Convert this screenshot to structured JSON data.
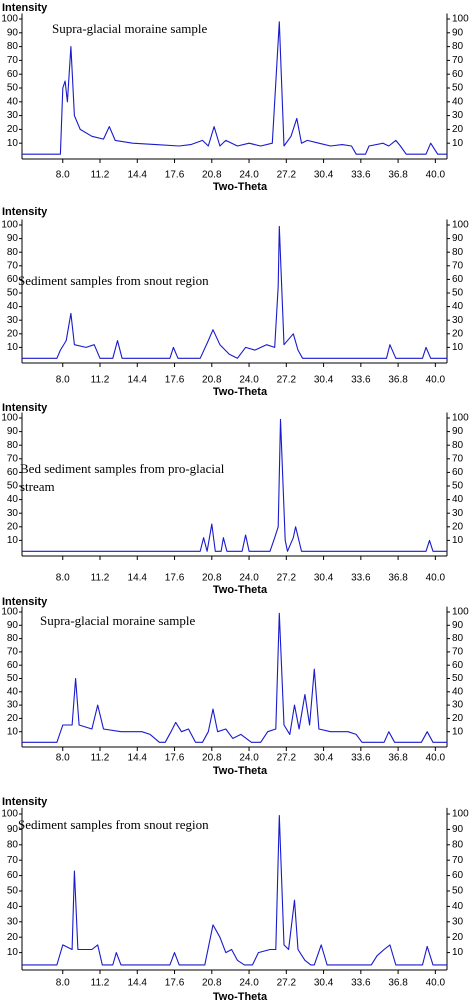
{
  "chart_data": [
    {
      "type": "line",
      "y_label": "Intensity",
      "x_label": "Two-Theta",
      "annotation": [
        "Supra-glacial moraine sample"
      ],
      "xlim": [
        4.5,
        41
      ],
      "ylim": [
        0,
        104
      ],
      "y2lim": [
        0,
        104
      ],
      "xticks": [
        {
          "value": 8,
          "label": "8.0"
        },
        11.2,
        14.4,
        17.6,
        20.8,
        {
          "value": 24,
          "label": "24.0"
        },
        27.2,
        30.4,
        33.6,
        36.8,
        {
          "value": 40,
          "label": "40.0"
        }
      ],
      "yticks": [
        10,
        20,
        30,
        40,
        50,
        60,
        70,
        80,
        90,
        100
      ],
      "y2ticks": [
        10,
        20,
        30,
        40,
        50,
        60,
        70,
        80,
        90,
        100
      ],
      "color": "#1a1acc",
      "x": [
        4.5,
        7.8,
        8.0,
        8.2,
        8.4,
        8.7,
        9.0,
        9.5,
        10.5,
        11.5,
        12.0,
        12.5,
        14.0,
        16.0,
        18.0,
        19.0,
        20.0,
        20.5,
        21.0,
        21.5,
        22.0,
        23.0,
        24.0,
        25.0,
        26.0,
        26.6,
        27.0,
        27.6,
        28.1,
        28.5,
        29.0,
        30.0,
        31.0,
        32.0,
        32.8,
        33.2,
        34.0,
        34.3,
        35.5,
        36.0,
        36.6,
        37.0,
        37.5,
        39.2,
        39.6,
        40.2,
        41.0
      ],
      "values": [
        2,
        2,
        50,
        55,
        40,
        80,
        30,
        20,
        15,
        13,
        22,
        12,
        10,
        9,
        8,
        9,
        12,
        8,
        22,
        8,
        12,
        8,
        10,
        8,
        10,
        98,
        8,
        15,
        28,
        10,
        12,
        10,
        8,
        9,
        8,
        2,
        2,
        8,
        10,
        8,
        12,
        8,
        2,
        2,
        10,
        2,
        2
      ]
    },
    {
      "type": "line",
      "y_label": "Intensity",
      "x_label": "Two-Theta",
      "annotation": [
        "Sediment samples from snout region"
      ],
      "xlim": [
        4.5,
        41
      ],
      "ylim": [
        0,
        104
      ],
      "y2lim": [
        0,
        104
      ],
      "xticks": [
        {
          "value": 8,
          "label": "8.0"
        },
        11.2,
        14.4,
        17.6,
        20.8,
        {
          "value": 24,
          "label": "24.0"
        },
        27.2,
        30.4,
        33.6,
        36.8,
        {
          "value": 40,
          "label": "40.0"
        }
      ],
      "yticks": [
        10,
        20,
        30,
        40,
        50,
        60,
        70,
        80,
        90,
        100
      ],
      "y2ticks": [
        10,
        20,
        30,
        40,
        50,
        60,
        70,
        80,
        90,
        100
      ],
      "color": "#1a1acc",
      "x": [
        4.5,
        7.5,
        7.8,
        8.3,
        8.7,
        9.0,
        10.0,
        10.7,
        11.2,
        12.3,
        12.7,
        13.1,
        17.2,
        17.5,
        17.9,
        19.8,
        20.5,
        20.9,
        21.5,
        22.3,
        23.0,
        23.7,
        24.5,
        25.5,
        26.2,
        26.5,
        26.6,
        27.0,
        27.8,
        28.2,
        28.6,
        35.8,
        36.1,
        36.6,
        38.9,
        39.2,
        39.6,
        41.0
      ],
      "values": [
        2,
        2,
        8,
        15,
        35,
        12,
        10,
        12,
        2,
        2,
        15,
        2,
        2,
        10,
        2,
        2,
        15,
        23,
        12,
        5,
        2,
        10,
        8,
        12,
        10,
        55,
        99,
        12,
        20,
        8,
        2,
        2,
        12,
        2,
        2,
        10,
        2,
        2
      ]
    },
    {
      "type": "line",
      "y_label": "Intensity",
      "x_label": "Two-Theta",
      "annotation": [
        "Bed sediment samples from pro-glacial",
        "stream"
      ],
      "xlim": [
        4.5,
        41
      ],
      "ylim": [
        0,
        104
      ],
      "y2lim": [
        0,
        104
      ],
      "xticks": [
        {
          "value": 8,
          "label": "8.0"
        },
        11.2,
        14.4,
        17.6,
        20.8,
        {
          "value": 24,
          "label": "24.0"
        },
        27.2,
        30.4,
        33.6,
        36.8,
        {
          "value": 40,
          "label": "40.0"
        }
      ],
      "yticks": [
        10,
        20,
        30,
        40,
        50,
        60,
        70,
        80,
        90,
        100
      ],
      "y2ticks": [
        10,
        20,
        30,
        40,
        50,
        60,
        70,
        80,
        90,
        100
      ],
      "color": "#1a1acc",
      "x": [
        4.5,
        19.8,
        20.1,
        20.4,
        20.8,
        21.1,
        21.6,
        21.8,
        22.1,
        23.4,
        23.7,
        24.0,
        25.8,
        26.2,
        26.5,
        26.7,
        27.1,
        27.3,
        27.8,
        28.0,
        28.5,
        39.2,
        39.5,
        39.8,
        41.0
      ],
      "values": [
        2,
        2,
        12,
        2,
        22,
        2,
        2,
        12,
        2,
        2,
        14,
        2,
        2,
        12,
        20,
        99,
        10,
        2,
        12,
        20,
        2,
        2,
        10,
        2,
        2
      ]
    },
    {
      "type": "line",
      "y_label": "Intensity",
      "x_label": "Two-Theta",
      "annotation": [
        "Supra-glacial moraine sample"
      ],
      "xlim": [
        4.5,
        41
      ],
      "ylim": [
        0,
        104
      ],
      "y2lim": [
        0,
        104
      ],
      "xticks": [
        {
          "value": 8,
          "label": "8.0"
        },
        11.2,
        14.4,
        17.6,
        20.8,
        {
          "value": 24,
          "label": "24.0"
        },
        27.2,
        30.4,
        33.6,
        36.8,
        {
          "value": 40,
          "label": "40.0"
        }
      ],
      "yticks": [
        10,
        20,
        30,
        40,
        50,
        60,
        70,
        80,
        90,
        100
      ],
      "y2ticks": [
        10,
        20,
        30,
        40,
        50,
        60,
        70,
        80,
        90,
        100
      ],
      "color": "#1a1acc",
      "x": [
        4.5,
        7.5,
        8.0,
        8.8,
        9.1,
        9.4,
        10.5,
        11.0,
        11.5,
        13.0,
        14.8,
        15.5,
        16.3,
        16.8,
        17.3,
        17.7,
        18.2,
        18.8,
        19.4,
        20.0,
        20.5,
        20.9,
        21.3,
        22.0,
        22.6,
        23.3,
        24.2,
        25.0,
        25.6,
        26.3,
        26.6,
        27.0,
        27.5,
        27.9,
        28.3,
        28.8,
        29.2,
        29.6,
        30.0,
        31.0,
        32.5,
        33.2,
        33.7,
        35.6,
        36.0,
        36.5,
        38.8,
        39.3,
        39.8,
        41.0
      ],
      "values": [
        2,
        2,
        15,
        15,
        50,
        15,
        12,
        30,
        12,
        10,
        10,
        8,
        2,
        2,
        10,
        17,
        10,
        12,
        2,
        2,
        10,
        27,
        10,
        12,
        5,
        8,
        2,
        2,
        10,
        12,
        99,
        15,
        8,
        30,
        12,
        38,
        15,
        57,
        12,
        10,
        10,
        8,
        2,
        2,
        10,
        2,
        2,
        10,
        2,
        2
      ]
    },
    {
      "type": "line",
      "y_label": "Intensity",
      "x_label": "Two-Theta",
      "annotation": [
        "Sediment samples from snout region"
      ],
      "xlim": [
        4.5,
        41
      ],
      "ylim": [
        0,
        104
      ],
      "y2lim": [
        0,
        104
      ],
      "xticks": [
        {
          "value": 8,
          "label": "8.0"
        },
        11.2,
        14.4,
        17.6,
        20.8,
        {
          "value": 24,
          "label": "24.0"
        },
        27.2,
        30.4,
        33.6,
        36.8,
        {
          "value": 40,
          "label": "40.0"
        }
      ],
      "yticks": [
        10,
        20,
        30,
        40,
        50,
        60,
        70,
        80,
        90,
        100
      ],
      "y2ticks": [
        10,
        20,
        30,
        40,
        50,
        60,
        70,
        80,
        90,
        100
      ],
      "color": "#1a1acc",
      "x": [
        4.5,
        7.5,
        8.0,
        8.8,
        9.0,
        9.3,
        10.5,
        11.0,
        11.4,
        12.3,
        12.6,
        13.0,
        17.2,
        17.6,
        18.0,
        20.2,
        20.9,
        21.5,
        22.0,
        22.5,
        23.0,
        23.6,
        24.3,
        24.8,
        25.8,
        26.3,
        26.6,
        27.0,
        27.4,
        27.9,
        28.2,
        28.8,
        29.3,
        29.6,
        30.2,
        30.7,
        34.5,
        35.0,
        35.6,
        36.1,
        36.6,
        38.9,
        39.3,
        39.8,
        41.0
      ],
      "values": [
        2,
        2,
        15,
        12,
        63,
        12,
        12,
        15,
        2,
        2,
        10,
        2,
        2,
        10,
        2,
        2,
        28,
        20,
        10,
        12,
        5,
        2,
        2,
        10,
        12,
        12,
        99,
        15,
        12,
        44,
        12,
        5,
        2,
        2,
        15,
        2,
        2,
        8,
        12,
        15,
        2,
        2,
        14,
        2,
        2
      ]
    }
  ]
}
